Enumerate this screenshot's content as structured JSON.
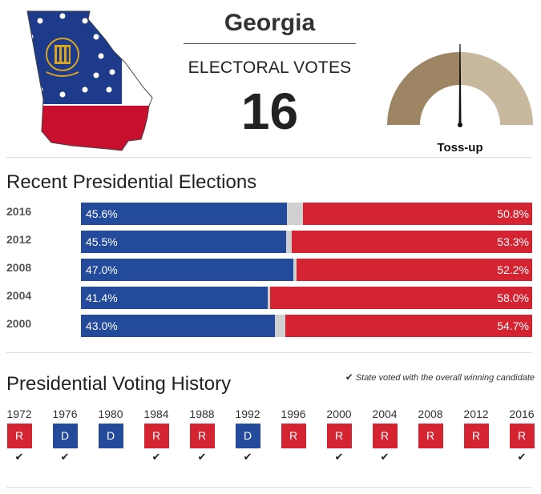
{
  "state": {
    "name": "Georgia",
    "flag_motto": "IN GOD WE TRUST",
    "flag_arch_text": "CONSTITUTION"
  },
  "electoral": {
    "label": "ELECTORAL VOTES",
    "count": "16"
  },
  "rating": {
    "label": "Toss-up",
    "left_color": "#9d8462",
    "right_color": "#c8b89d"
  },
  "colors": {
    "democrat": "#234a9b",
    "republican": "#d42331",
    "other": "#d0d0d0"
  },
  "recent_elections": {
    "title": "Recent Presidential Elections",
    "rows": [
      {
        "year": "2016",
        "dem": 45.6,
        "rep": 50.8,
        "dem_label": "45.6%",
        "rep_label": "50.8%"
      },
      {
        "year": "2012",
        "dem": 45.5,
        "rep": 53.3,
        "dem_label": "45.5%",
        "rep_label": "53.3%"
      },
      {
        "year": "2008",
        "dem": 47.0,
        "rep": 52.2,
        "dem_label": "47.0%",
        "rep_label": "52.2%"
      },
      {
        "year": "2004",
        "dem": 41.4,
        "rep": 58.0,
        "dem_label": "41.4%",
        "rep_label": "58.0%"
      },
      {
        "year": "2000",
        "dem": 43.0,
        "rep": 54.7,
        "dem_label": "43.0%",
        "rep_label": "54.7%"
      }
    ]
  },
  "voting_history": {
    "title": "Presidential Voting History",
    "legend": "State voted with the overall winning candidate",
    "years": [
      {
        "year": "1972",
        "party": "R",
        "winner": true
      },
      {
        "year": "1976",
        "party": "D",
        "winner": true
      },
      {
        "year": "1980",
        "party": "D",
        "winner": false
      },
      {
        "year": "1984",
        "party": "R",
        "winner": true
      },
      {
        "year": "1988",
        "party": "R",
        "winner": true
      },
      {
        "year": "1992",
        "party": "D",
        "winner": true
      },
      {
        "year": "1996",
        "party": "R",
        "winner": false
      },
      {
        "year": "2000",
        "party": "R",
        "winner": true
      },
      {
        "year": "2004",
        "party": "R",
        "winner": true
      },
      {
        "year": "2008",
        "party": "R",
        "winner": false
      },
      {
        "year": "2012",
        "party": "R",
        "winner": false
      },
      {
        "year": "2016",
        "party": "R",
        "winner": true
      }
    ]
  }
}
